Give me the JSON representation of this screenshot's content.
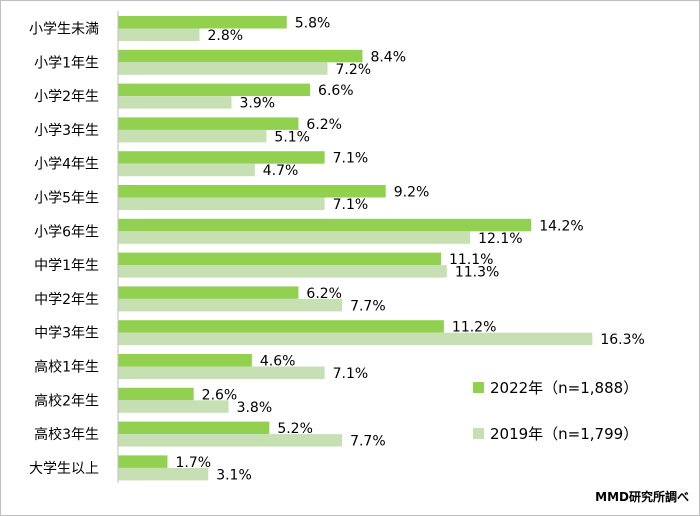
{
  "chart_data": {
    "type": "bar",
    "orientation": "horizontal",
    "categories": [
      "小学生未満",
      "小学1年生",
      "小学2年生",
      "小学3年生",
      "小学4年生",
      "小学5年生",
      "小学6年生",
      "中学1年生",
      "中学2年生",
      "中学3年生",
      "高校1年生",
      "高校2年生",
      "高校3年生",
      "大学生以上"
    ],
    "series": [
      {
        "name": "2022年（n=1,888）",
        "color": "#92d050",
        "values": [
          5.8,
          8.4,
          6.6,
          6.2,
          7.1,
          9.2,
          14.2,
          11.1,
          6.2,
          11.2,
          4.6,
          2.6,
          5.2,
          1.7
        ],
        "labels": [
          "5.8%",
          "8.4%",
          "6.6%",
          "6.2%",
          "7.1%",
          "9.2%",
          "14.2%",
          "11.1%",
          "6.2%",
          "11.2%",
          "4.6%",
          "2.6%",
          "5.2%",
          "1.7%"
        ]
      },
      {
        "name": "2019年（n=1,799）",
        "color": "#c6e0b4",
        "values": [
          2.8,
          7.2,
          3.9,
          5.1,
          4.7,
          7.1,
          12.1,
          11.3,
          7.7,
          16.3,
          7.1,
          3.8,
          7.7,
          3.1
        ],
        "labels": [
          "2.8%",
          "7.2%",
          "3.9%",
          "5.1%",
          "4.7%",
          "7.1%",
          "12.1%",
          "11.3%",
          "7.7%",
          "16.3%",
          "7.1%",
          "3.8%",
          "7.7%",
          "3.1%"
        ]
      }
    ],
    "xlim": [
      0,
      17.4
    ],
    "legend_position": "bottom-right",
    "grid": false
  },
  "source": "MMD研究所調べ"
}
